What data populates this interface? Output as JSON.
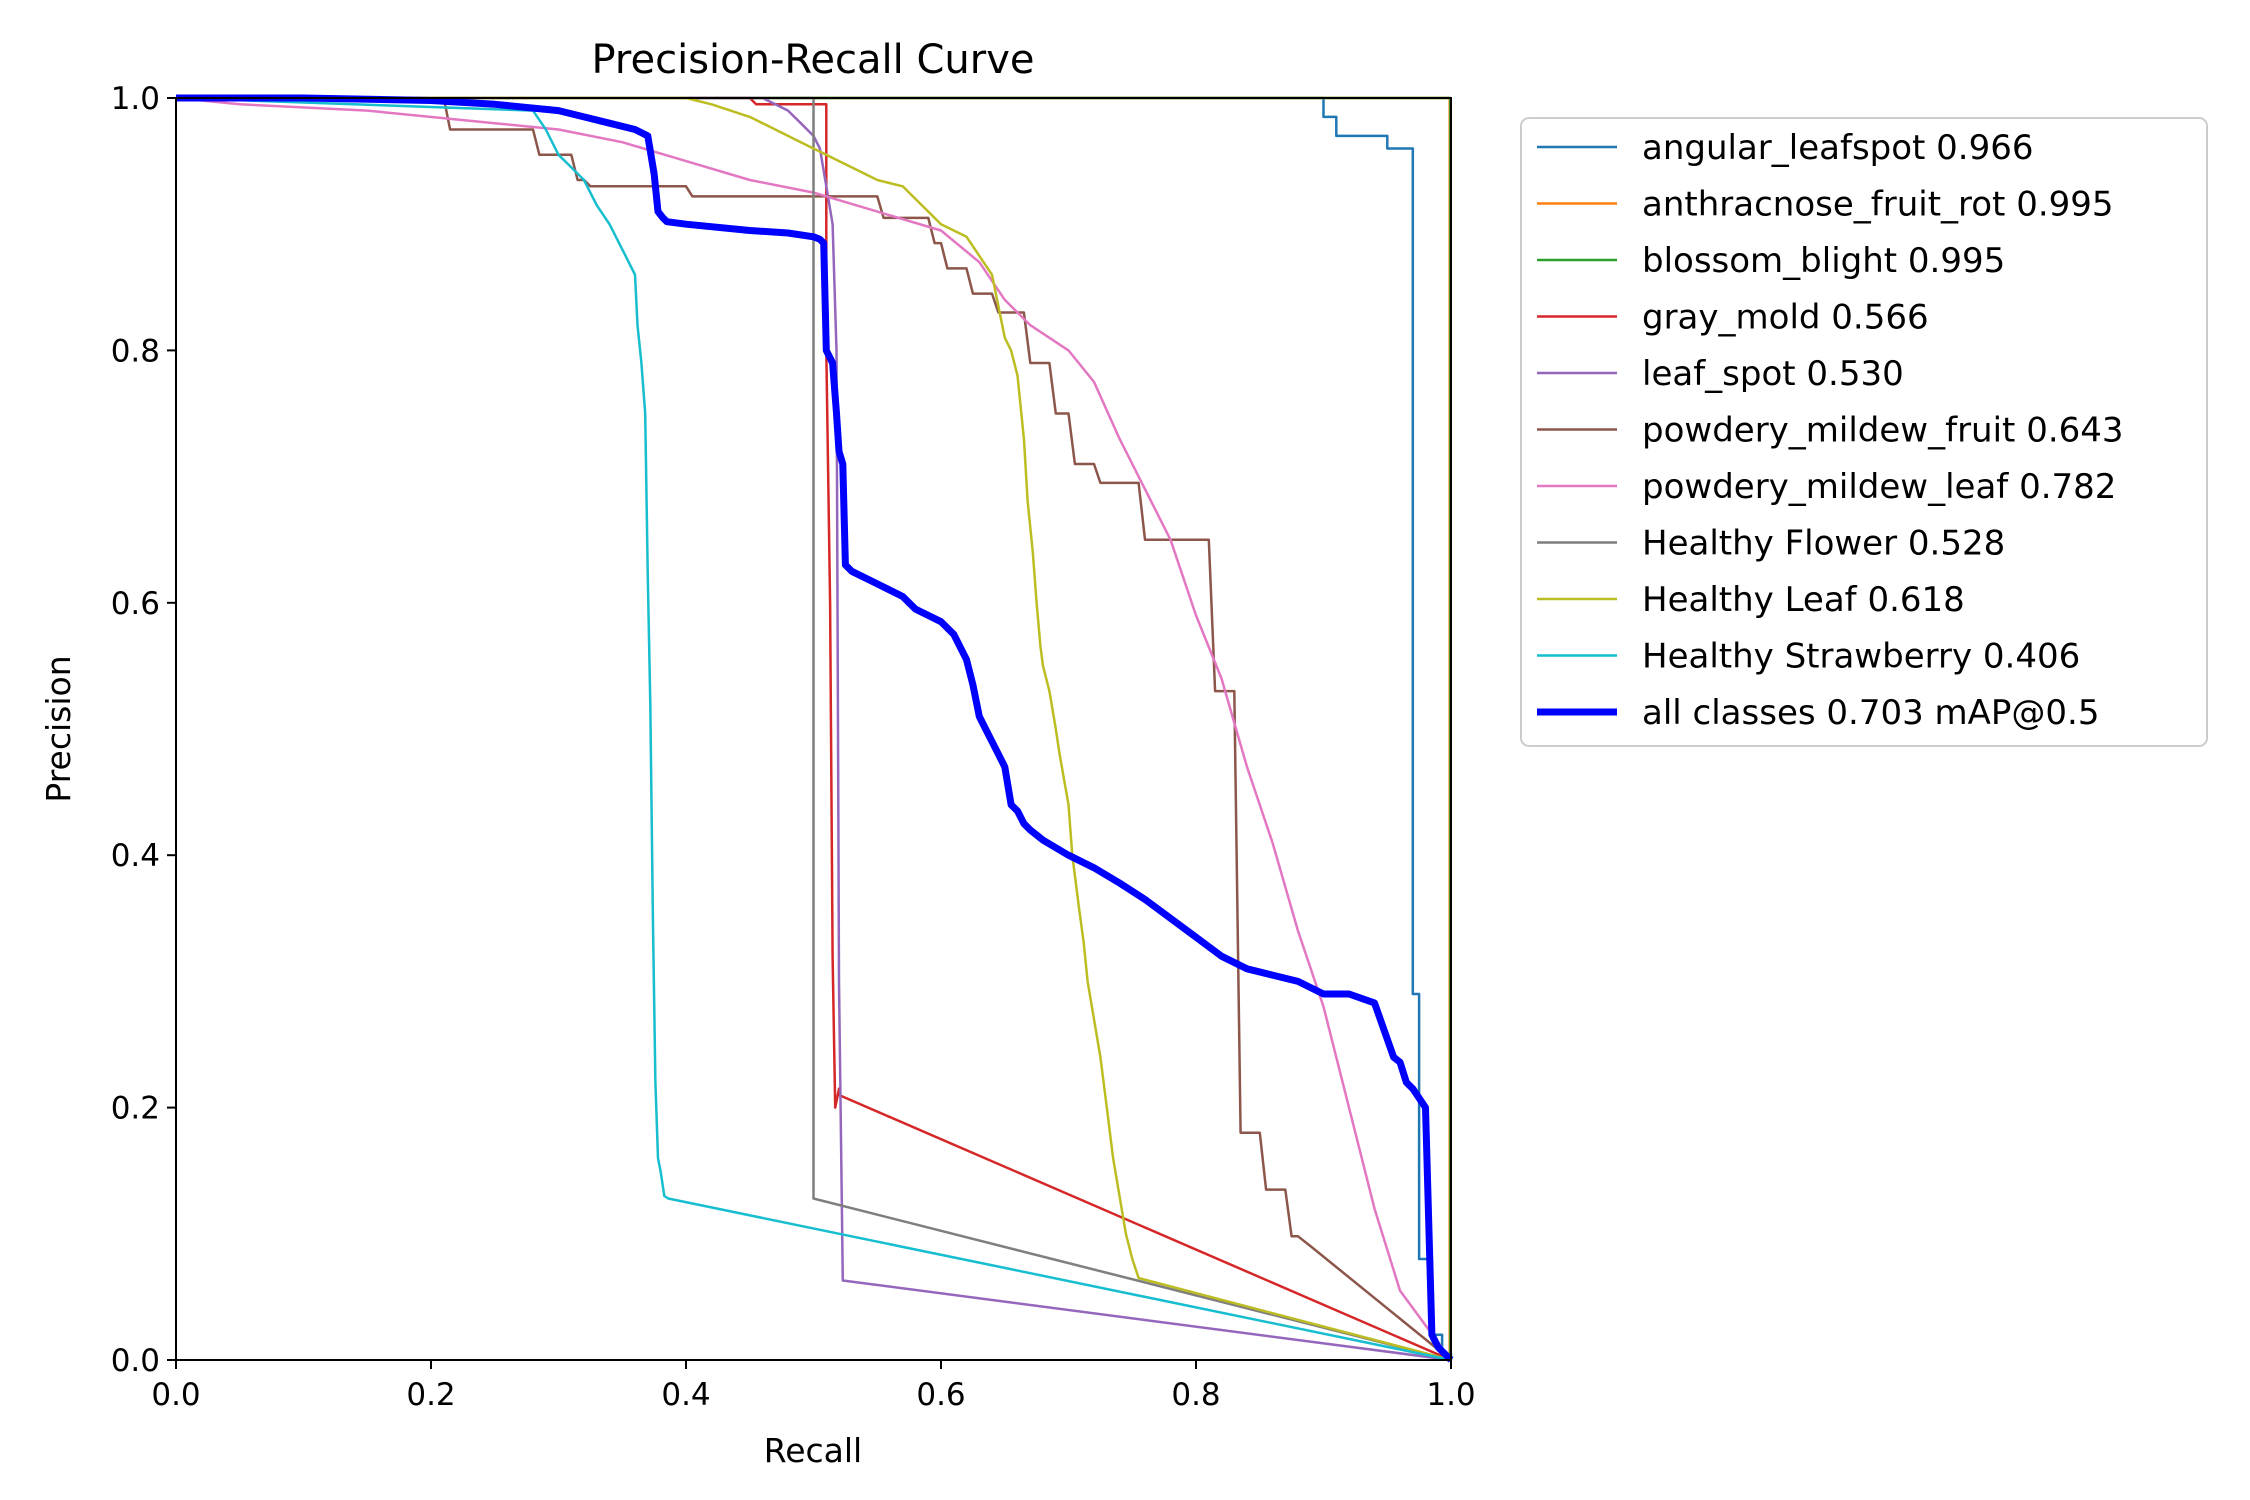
{
  "chart_data": {
    "type": "line",
    "title": "Precision-Recall Curve",
    "xlabel": "Recall",
    "ylabel": "Precision",
    "xlim": [
      0,
      1
    ],
    "ylim": [
      0,
      1
    ],
    "xticks": [
      "0.0",
      "0.2",
      "0.4",
      "0.6",
      "0.8",
      "1.0"
    ],
    "yticks": [
      "0.0",
      "0.2",
      "0.4",
      "0.6",
      "0.8",
      "1.0"
    ],
    "grid": false,
    "legend_position": "outside-right-top",
    "series": [
      {
        "name": "angular_leafspot 0.966",
        "color": "#1f77b4",
        "width": 2.5,
        "x": [
          0,
          0.87,
          0.87,
          0.9,
          0.9,
          0.91,
          0.91,
          0.95,
          0.95,
          0.97,
          0.97,
          0.975,
          0.975,
          0.985,
          0.985,
          0.993,
          0.993,
          1.0,
          1.0
        ],
        "y": [
          1,
          1,
          1.0,
          1.0,
          0.985,
          0.985,
          0.97,
          0.97,
          0.96,
          0.96,
          0.29,
          0.29,
          0.08,
          0.08,
          0.02,
          0.02,
          0.005,
          0.005,
          0
        ]
      },
      {
        "name": "anthracnose_fruit_rot 0.995",
        "color": "#ff7f0e",
        "width": 2.5,
        "x": [
          0,
          0.999,
          0.999,
          1.0
        ],
        "y": [
          1,
          1,
          0.005,
          0
        ]
      },
      {
        "name": "blossom_blight 0.995",
        "color": "#2ca02c",
        "width": 2.5,
        "x": [
          0,
          0.9995,
          0.9995,
          1.0
        ],
        "y": [
          1,
          1,
          0.005,
          0
        ]
      },
      {
        "name": "gray_mold 0.566",
        "color": "#d62728",
        "width": 2.5,
        "x": [
          0,
          0.45,
          0.455,
          0.51,
          0.51,
          0.513,
          0.515,
          0.517,
          0.52,
          0.52,
          1.0
        ],
        "y": [
          1,
          1,
          0.995,
          0.995,
          0.8,
          0.6,
          0.32,
          0.2,
          0.215,
          0.21,
          0
        ]
      },
      {
        "name": "leaf_spot 0.530",
        "color": "#9467bd",
        "width": 2.5,
        "x": [
          0,
          0.46,
          0.47,
          0.48,
          0.49,
          0.5,
          0.505,
          0.51,
          0.515,
          0.518,
          0.52,
          0.523,
          1.0
        ],
        "y": [
          1,
          1,
          0.995,
          0.99,
          0.98,
          0.97,
          0.96,
          0.93,
          0.9,
          0.8,
          0.3,
          0.063,
          0
        ]
      },
      {
        "name": "powdery_mildew_fruit 0.643",
        "color": "#8c564b",
        "width": 2.5,
        "x": [
          0,
          0.21,
          0.215,
          0.28,
          0.285,
          0.31,
          0.315,
          0.32,
          0.325,
          0.4,
          0.405,
          0.55,
          0.555,
          0.59,
          0.595,
          0.6,
          0.605,
          0.62,
          0.625,
          0.64,
          0.645,
          0.665,
          0.67,
          0.685,
          0.69,
          0.7,
          0.705,
          0.72,
          0.725,
          0.755,
          0.76,
          0.81,
          0.815,
          0.83,
          0.835,
          0.85,
          0.855,
          0.87,
          0.875,
          0.88,
          0.89,
          1.0
        ],
        "y": [
          1,
          1,
          0.975,
          0.975,
          0.955,
          0.955,
          0.935,
          0.935,
          0.93,
          0.93,
          0.922,
          0.922,
          0.905,
          0.905,
          0.885,
          0.885,
          0.865,
          0.865,
          0.845,
          0.845,
          0.83,
          0.83,
          0.79,
          0.79,
          0.75,
          0.75,
          0.71,
          0.71,
          0.695,
          0.695,
          0.65,
          0.65,
          0.53,
          0.53,
          0.18,
          0.18,
          0.135,
          0.135,
          0.098,
          0.098,
          0.09,
          0
        ]
      },
      {
        "name": "powdery_mildew_leaf 0.782",
        "color": "#e377c2",
        "width": 2.5,
        "x": [
          0,
          0.05,
          0.15,
          0.25,
          0.3,
          0.35,
          0.4,
          0.45,
          0.5,
          0.55,
          0.6,
          0.63,
          0.65,
          0.67,
          0.7,
          0.72,
          0.74,
          0.76,
          0.78,
          0.8,
          0.82,
          0.84,
          0.86,
          0.88,
          0.9,
          0.92,
          0.94,
          0.96,
          1.0
        ],
        "y": [
          1,
          0.995,
          0.99,
          0.98,
          0.975,
          0.965,
          0.95,
          0.935,
          0.925,
          0.91,
          0.895,
          0.87,
          0.84,
          0.82,
          0.8,
          0.775,
          0.73,
          0.69,
          0.65,
          0.59,
          0.54,
          0.47,
          0.41,
          0.34,
          0.28,
          0.2,
          0.12,
          0.055,
          0
        ]
      },
      {
        "name": "Healthy Flower 0.528",
        "color": "#7f7f7f",
        "width": 2.5,
        "x": [
          0,
          0.5,
          0.5,
          0.5,
          1.0
        ],
        "y": [
          1,
          1,
          0.99,
          0.128,
          0
        ]
      },
      {
        "name": "Healthy Leaf 0.618",
        "color": "#bcbd22",
        "width": 2.5,
        "x": [
          0,
          0.4,
          0.42,
          0.45,
          0.47,
          0.49,
          0.5,
          0.51,
          0.52,
          0.53,
          0.55,
          0.57,
          0.58,
          0.59,
          0.6,
          0.62,
          0.63,
          0.64,
          0.645,
          0.65,
          0.655,
          0.66,
          0.665,
          0.668,
          0.672,
          0.675,
          0.678,
          0.68,
          0.685,
          0.69,
          0.693,
          0.7,
          0.703,
          0.708,
          0.712,
          0.715,
          0.72,
          0.725,
          0.73,
          0.735,
          0.74,
          0.745,
          0.75,
          0.755,
          1.0
        ],
        "y": [
          1,
          1,
          0.995,
          0.985,
          0.975,
          0.965,
          0.96,
          0.955,
          0.95,
          0.945,
          0.935,
          0.93,
          0.92,
          0.91,
          0.9,
          0.89,
          0.875,
          0.86,
          0.835,
          0.81,
          0.8,
          0.78,
          0.73,
          0.68,
          0.64,
          0.6,
          0.565,
          0.55,
          0.53,
          0.5,
          0.48,
          0.44,
          0.4,
          0.36,
          0.33,
          0.3,
          0.27,
          0.24,
          0.2,
          0.16,
          0.13,
          0.1,
          0.08,
          0.065,
          0
        ]
      },
      {
        "name": "Healthy Strawberry 0.406",
        "color": "#17becf",
        "width": 2.5,
        "x": [
          0,
          0.28,
          0.29,
          0.3,
          0.31,
          0.32,
          0.33,
          0.34,
          0.345,
          0.35,
          0.36,
          0.362,
          0.365,
          0.368,
          0.37,
          0.372,
          0.374,
          0.376,
          0.378,
          0.38,
          0.383,
          0.386,
          1.0
        ],
        "y": [
          1,
          0.99,
          0.975,
          0.955,
          0.945,
          0.935,
          0.915,
          0.9,
          0.89,
          0.88,
          0.86,
          0.82,
          0.79,
          0.75,
          0.62,
          0.52,
          0.35,
          0.22,
          0.16,
          0.15,
          0.13,
          0.128,
          0
        ]
      },
      {
        "name": "all classes 0.703 mAP@0.5",
        "color": "#0000ff",
        "width": 7,
        "x": [
          0,
          0.1,
          0.2,
          0.25,
          0.3,
          0.32,
          0.34,
          0.36,
          0.37,
          0.375,
          0.378,
          0.382,
          0.385,
          0.4,
          0.45,
          0.48,
          0.5,
          0.505,
          0.508,
          0.51,
          0.515,
          0.518,
          0.52,
          0.523,
          0.525,
          0.53,
          0.55,
          0.57,
          0.58,
          0.6,
          0.61,
          0.62,
          0.625,
          0.63,
          0.635,
          0.64,
          0.645,
          0.65,
          0.655,
          0.66,
          0.665,
          0.67,
          0.68,
          0.7,
          0.72,
          0.74,
          0.76,
          0.78,
          0.8,
          0.82,
          0.84,
          0.86,
          0.88,
          0.9,
          0.92,
          0.94,
          0.955,
          0.96,
          0.965,
          0.97,
          0.98,
          0.985,
          0.99,
          0.995,
          1.0,
          1.0
        ],
        "y": [
          1,
          1,
          0.998,
          0.995,
          0.99,
          0.985,
          0.98,
          0.975,
          0.97,
          0.94,
          0.91,
          0.905,
          0.902,
          0.9,
          0.895,
          0.893,
          0.89,
          0.888,
          0.885,
          0.8,
          0.79,
          0.75,
          0.72,
          0.71,
          0.63,
          0.625,
          0.615,
          0.605,
          0.595,
          0.585,
          0.575,
          0.555,
          0.535,
          0.51,
          0.5,
          0.49,
          0.48,
          0.47,
          0.44,
          0.435,
          0.425,
          0.42,
          0.412,
          0.4,
          0.39,
          0.378,
          0.365,
          0.35,
          0.335,
          0.32,
          0.31,
          0.305,
          0.3,
          0.29,
          0.29,
          0.283,
          0.24,
          0.236,
          0.22,
          0.215,
          0.2,
          0.02,
          0.01,
          0.005,
          0,
          0
        ]
      }
    ]
  }
}
